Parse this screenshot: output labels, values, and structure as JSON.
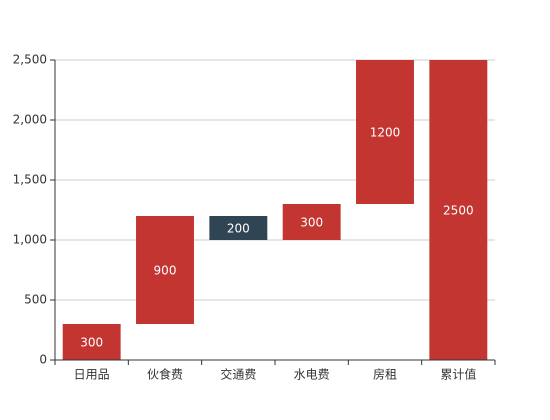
{
  "chart_data": {
    "type": "bar",
    "subtype": "waterfall",
    "title": "",
    "xlabel": "",
    "ylabel": "",
    "categories": [
      "日用品",
      "伙食费",
      "交通费",
      "水电费",
      "房租",
      "累计值"
    ],
    "bars": [
      {
        "category": "日用品",
        "base": 0,
        "value": 300,
        "label": "300",
        "color": "#c23531"
      },
      {
        "category": "伙食费",
        "base": 300,
        "value": 900,
        "label": "900",
        "color": "#c23531"
      },
      {
        "category": "交通费",
        "base": 1000,
        "value": 200,
        "label": "200",
        "color": "#2f4554"
      },
      {
        "category": "水电费",
        "base": 1000,
        "value": 300,
        "label": "300",
        "color": "#c23531"
      },
      {
        "category": "房租",
        "base": 1300,
        "value": 1200,
        "label": "1200",
        "color": "#c23531"
      },
      {
        "category": "累计值",
        "base": 0,
        "value": 2500,
        "label": "2500",
        "color": "#c23531"
      }
    ],
    "ylim": [
      0,
      2500
    ],
    "yticks": [
      0,
      500,
      1000,
      1500,
      2000,
      2500
    ],
    "ytick_labels": [
      "0",
      "500",
      "1,000",
      "1,500",
      "2,000",
      "2,500"
    ],
    "grid": true,
    "legend": false
  }
}
